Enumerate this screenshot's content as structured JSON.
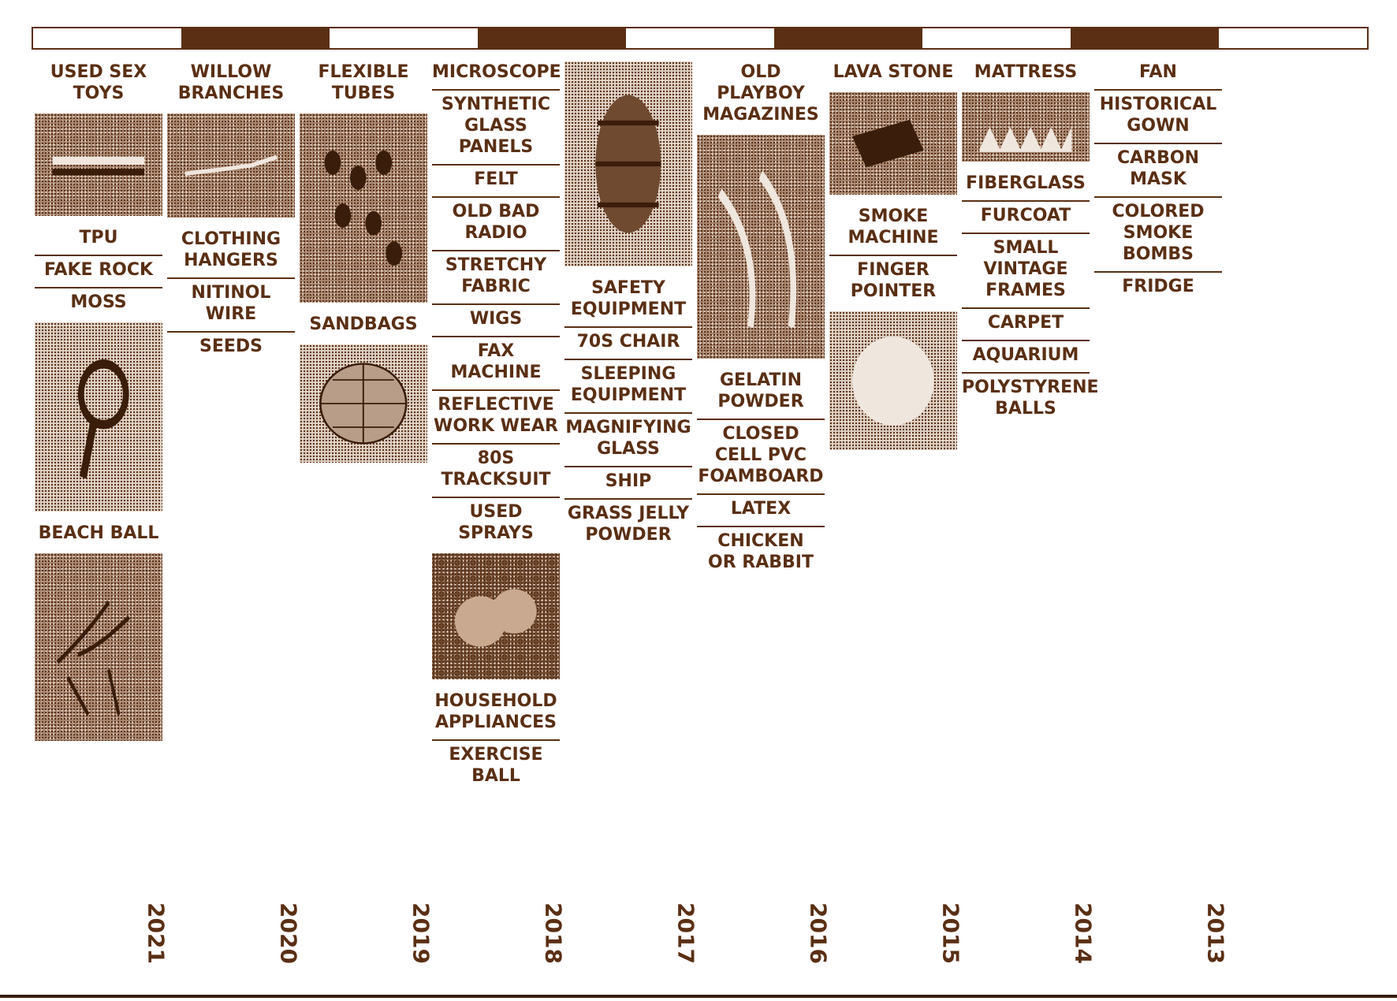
{
  "timeline": {
    "columns": [
      {
        "year": "2021",
        "entries": [
          {
            "type": "item",
            "label": "USED SEX TOYS",
            "nb": true
          },
          {
            "type": "photo",
            "icon": "bench-photo-icon",
            "h": 130,
            "tone": "normal"
          },
          {
            "type": "item",
            "label": "TPU"
          },
          {
            "type": "item",
            "label": "FAKE ROCK"
          },
          {
            "type": "item",
            "label": "MOSS",
            "nb": true
          },
          {
            "type": "photo",
            "icon": "mirror-photo-icon",
            "h": 240,
            "tone": "bright"
          },
          {
            "type": "item",
            "label": "BEACH BALL",
            "nb": true
          },
          {
            "type": "photo",
            "icon": "branches-photo-icon",
            "h": 238,
            "tone": "normal"
          }
        ]
      },
      {
        "year": "2020",
        "entries": [
          {
            "type": "item",
            "label": "WILLOW\nBRANCHES",
            "nb": true
          },
          {
            "type": "photo",
            "icon": "wire-photo-icon",
            "h": 132,
            "tone": "normal"
          },
          {
            "type": "item",
            "label": "CLOTHING\nHANGERS"
          },
          {
            "type": "item",
            "label": "NITINOL WIRE"
          },
          {
            "type": "item",
            "label": "SEEDS",
            "nb": true
          }
        ]
      },
      {
        "year": "2019",
        "entries": [
          {
            "type": "item",
            "label": "FLEXIBLE\nTUBES",
            "nb": true
          },
          {
            "type": "photo",
            "icon": "beads-photo-icon",
            "h": 240,
            "tone": "normal"
          },
          {
            "type": "item",
            "label": "SANDBAGS",
            "nb": true
          },
          {
            "type": "photo",
            "icon": "disco-ball-photo-icon",
            "h": 150,
            "tone": "bright"
          }
        ]
      },
      {
        "year": "2018",
        "entries": [
          {
            "type": "item",
            "label": "MICROSCOPE"
          },
          {
            "type": "item",
            "label": "SYNTHETIC\nGLASS PANELS"
          },
          {
            "type": "item",
            "label": "FELT"
          },
          {
            "type": "item",
            "label": "OLD BAD\nRADIO"
          },
          {
            "type": "item",
            "label": "STRETCHY\nFABRIC"
          },
          {
            "type": "item",
            "label": "WIGS"
          },
          {
            "type": "item",
            "label": "FAX MACHINE"
          },
          {
            "type": "item",
            "label": "REFLECTIVE\nWORK WEAR"
          },
          {
            "type": "item",
            "label": "80S TRACKSUIT"
          },
          {
            "type": "item",
            "label": "USED SPRAYS",
            "nb": true
          },
          {
            "type": "photo",
            "icon": "spheres-photo-icon",
            "h": 160,
            "tone": "dark"
          },
          {
            "type": "item",
            "label": "HOUSEHOLD\nAPPLIANCES"
          },
          {
            "type": "item",
            "label": "EXERCISE BALL",
            "nb": true
          }
        ]
      },
      {
        "year": "2017",
        "entries": [
          {
            "type": "photo",
            "icon": "barrel-photo-icon",
            "h": 260,
            "tone": "bright"
          },
          {
            "type": "item",
            "label": "SAFETY\nEQUIPMENT"
          },
          {
            "type": "item",
            "label": "70S CHAIR"
          },
          {
            "type": "item",
            "label": "SLEEPING\nEQUIPMENT"
          },
          {
            "type": "item",
            "label": "MAGNIFYING\nGLASS"
          },
          {
            "type": "item",
            "label": "SHIP"
          },
          {
            "type": "item",
            "label": "GRASS JELLY\nPOWDER",
            "nb": true
          }
        ]
      },
      {
        "year": "2016",
        "entries": [
          {
            "type": "item",
            "label": "OLD PLAYBOY\nMAGAZINES",
            "nb": true
          },
          {
            "type": "photo",
            "icon": "fabric-photo-icon",
            "h": 284,
            "tone": "normal"
          },
          {
            "type": "item",
            "label": "GELATIN\nPOWDER"
          },
          {
            "type": "item",
            "label": "CLOSED\nCELL PVC\nFOAMBOARD"
          },
          {
            "type": "item",
            "label": "LATEX"
          },
          {
            "type": "item",
            "label": "CHICKEN\nOR RABBIT",
            "nb": true
          }
        ]
      },
      {
        "year": "2015",
        "entries": [
          {
            "type": "item",
            "label": "LAVA STONE",
            "nb": true
          },
          {
            "type": "photo",
            "icon": "stone-photo-icon",
            "h": 130,
            "tone": "normal"
          },
          {
            "type": "item",
            "label": "SMOKE\nMACHINE"
          },
          {
            "type": "item",
            "label": "FINGER\nPOINTER",
            "nb": true
          },
          {
            "type": "photo",
            "icon": "granules-photo-icon",
            "h": 176,
            "tone": "bright"
          }
        ]
      },
      {
        "year": "2014",
        "entries": [
          {
            "type": "item",
            "label": "MATTRESS",
            "nb": true
          },
          {
            "type": "photo",
            "icon": "foam-photo-icon",
            "h": 88,
            "tone": "normal"
          },
          {
            "type": "item",
            "label": "FIBERGLASS"
          },
          {
            "type": "item",
            "label": "FURCOAT"
          },
          {
            "type": "item",
            "label": "SMALL\nVINTAGE\nFRAMES"
          },
          {
            "type": "item",
            "label": "CARPET"
          },
          {
            "type": "item",
            "label": "AQUARIUM"
          },
          {
            "type": "item",
            "label": "POLYSTYRENE\nBALLS",
            "nb": true
          }
        ]
      },
      {
        "year": "2013",
        "entries": [
          {
            "type": "item",
            "label": "FAN"
          },
          {
            "type": "item",
            "label": "HISTORICAL\nGOWN"
          },
          {
            "type": "item",
            "label": "CARBON MASK"
          },
          {
            "type": "item",
            "label": "COLORED\nSMOKE\nBOMBS"
          },
          {
            "type": "item",
            "label": "FRIDGE",
            "nb": true
          }
        ]
      }
    ]
  },
  "colors": {
    "accent": "#5a2f14",
    "background": "#ffffff"
  }
}
